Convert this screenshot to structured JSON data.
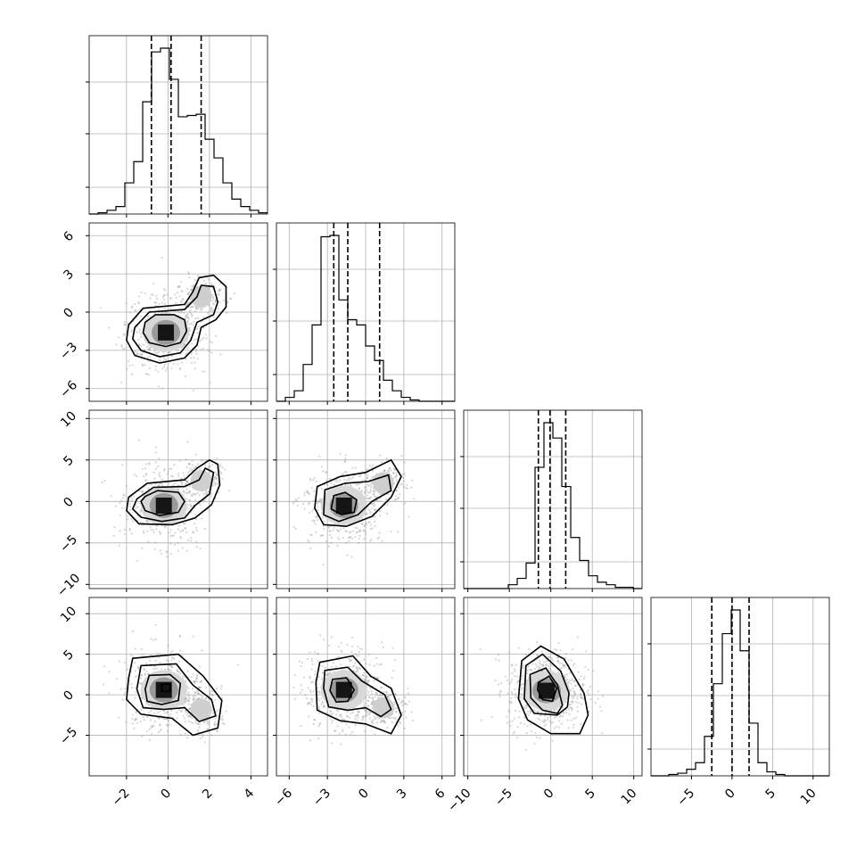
{
  "chart_data": {
    "type": "corner",
    "n_params": 4,
    "axes": [
      {
        "range": [
          -3.8,
          4.8
        ],
        "ticks": [
          -2,
          0,
          2,
          4
        ],
        "tick_labels": [
          "−2",
          "0",
          "2",
          "4"
        ],
        "quantiles": [
          -0.8,
          0.15,
          1.6
        ]
      },
      {
        "range": [
          -7,
          7
        ],
        "ticks": [
          -6,
          -3,
          0,
          3,
          6
        ],
        "tick_labels": [
          "−6",
          "−3",
          "0",
          "3",
          "6"
        ],
        "quantiles": [
          -2.5,
          -1.4,
          1.1
        ]
      },
      {
        "range": [
          -10.5,
          11
        ],
        "ticks": [
          -10,
          -5,
          0,
          5,
          10
        ],
        "tick_labels": [
          "−10",
          "−5",
          "0",
          "5",
          "10"
        ],
        "quantiles": [
          -1.5,
          -0.1,
          1.8
        ]
      },
      {
        "range": [
          -10,
          12
        ],
        "ticks": [
          -5,
          0,
          5,
          10
        ],
        "tick_labels": [
          "−5",
          "0",
          "5",
          "10"
        ],
        "quantiles": [
          -2.5,
          0,
          2.1
        ]
      }
    ],
    "histograms": [
      {
        "edges_start": -3.8,
        "bin_width": 0.43,
        "counts": [
          0,
          1,
          3,
          6,
          25,
          42,
          90,
          130,
          133,
          108,
          78,
          79,
          80,
          60,
          45,
          25,
          12,
          6,
          3,
          1
        ]
      },
      {
        "edges_start": -7,
        "bin_width": 0.7,
        "counts": [
          0,
          3,
          8,
          28,
          58,
          125,
          126,
          77,
          62,
          58,
          42,
          31,
          16,
          8,
          3,
          1,
          0,
          0,
          0,
          0
        ]
      },
      {
        "edges_start": -10.5,
        "bin_width": 1.075,
        "counts": [
          0,
          0,
          0,
          0,
          0,
          3,
          8,
          20,
          95,
          130,
          118,
          80,
          40,
          22,
          10,
          5,
          3,
          1,
          1,
          0
        ]
      },
      {
        "edges_start": -10,
        "bin_width": 1.1,
        "counts": [
          0,
          0,
          1,
          2,
          5,
          10,
          30,
          70,
          108,
          126,
          95,
          40,
          10,
          3,
          1,
          0,
          0,
          0,
          0,
          0
        ]
      }
    ]
  }
}
